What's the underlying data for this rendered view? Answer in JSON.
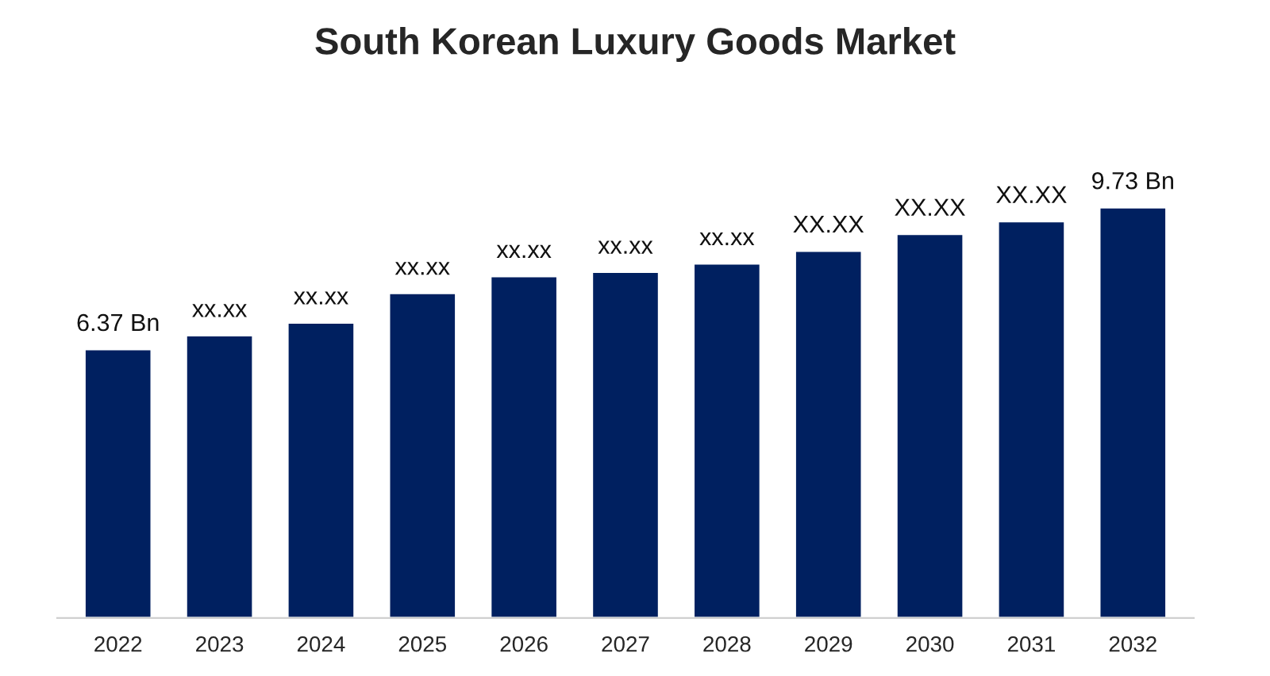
{
  "chart_data": {
    "type": "bar",
    "title": "South Korean Luxury Goods Market",
    "categories": [
      "2022",
      "2023",
      "2024",
      "2025",
      "2026",
      "2027",
      "2028",
      "2029",
      "2030",
      "2031",
      "2032"
    ],
    "values": [
      6.37,
      6.7,
      7.0,
      7.7,
      8.1,
      8.2,
      8.4,
      8.7,
      9.1,
      9.4,
      9.73
    ],
    "value_labels": [
      "6.37 Bn",
      "xx.xx",
      "xx.xx",
      "xx.xx",
      "xx.xx",
      "xx.xx",
      "xx.xx",
      "XX.XX",
      "XX.XX",
      "XX.XX",
      "9.73 Bn"
    ],
    "color": "#002060",
    "tick_labels": "x",
    "grid": false,
    "legend": false
  }
}
